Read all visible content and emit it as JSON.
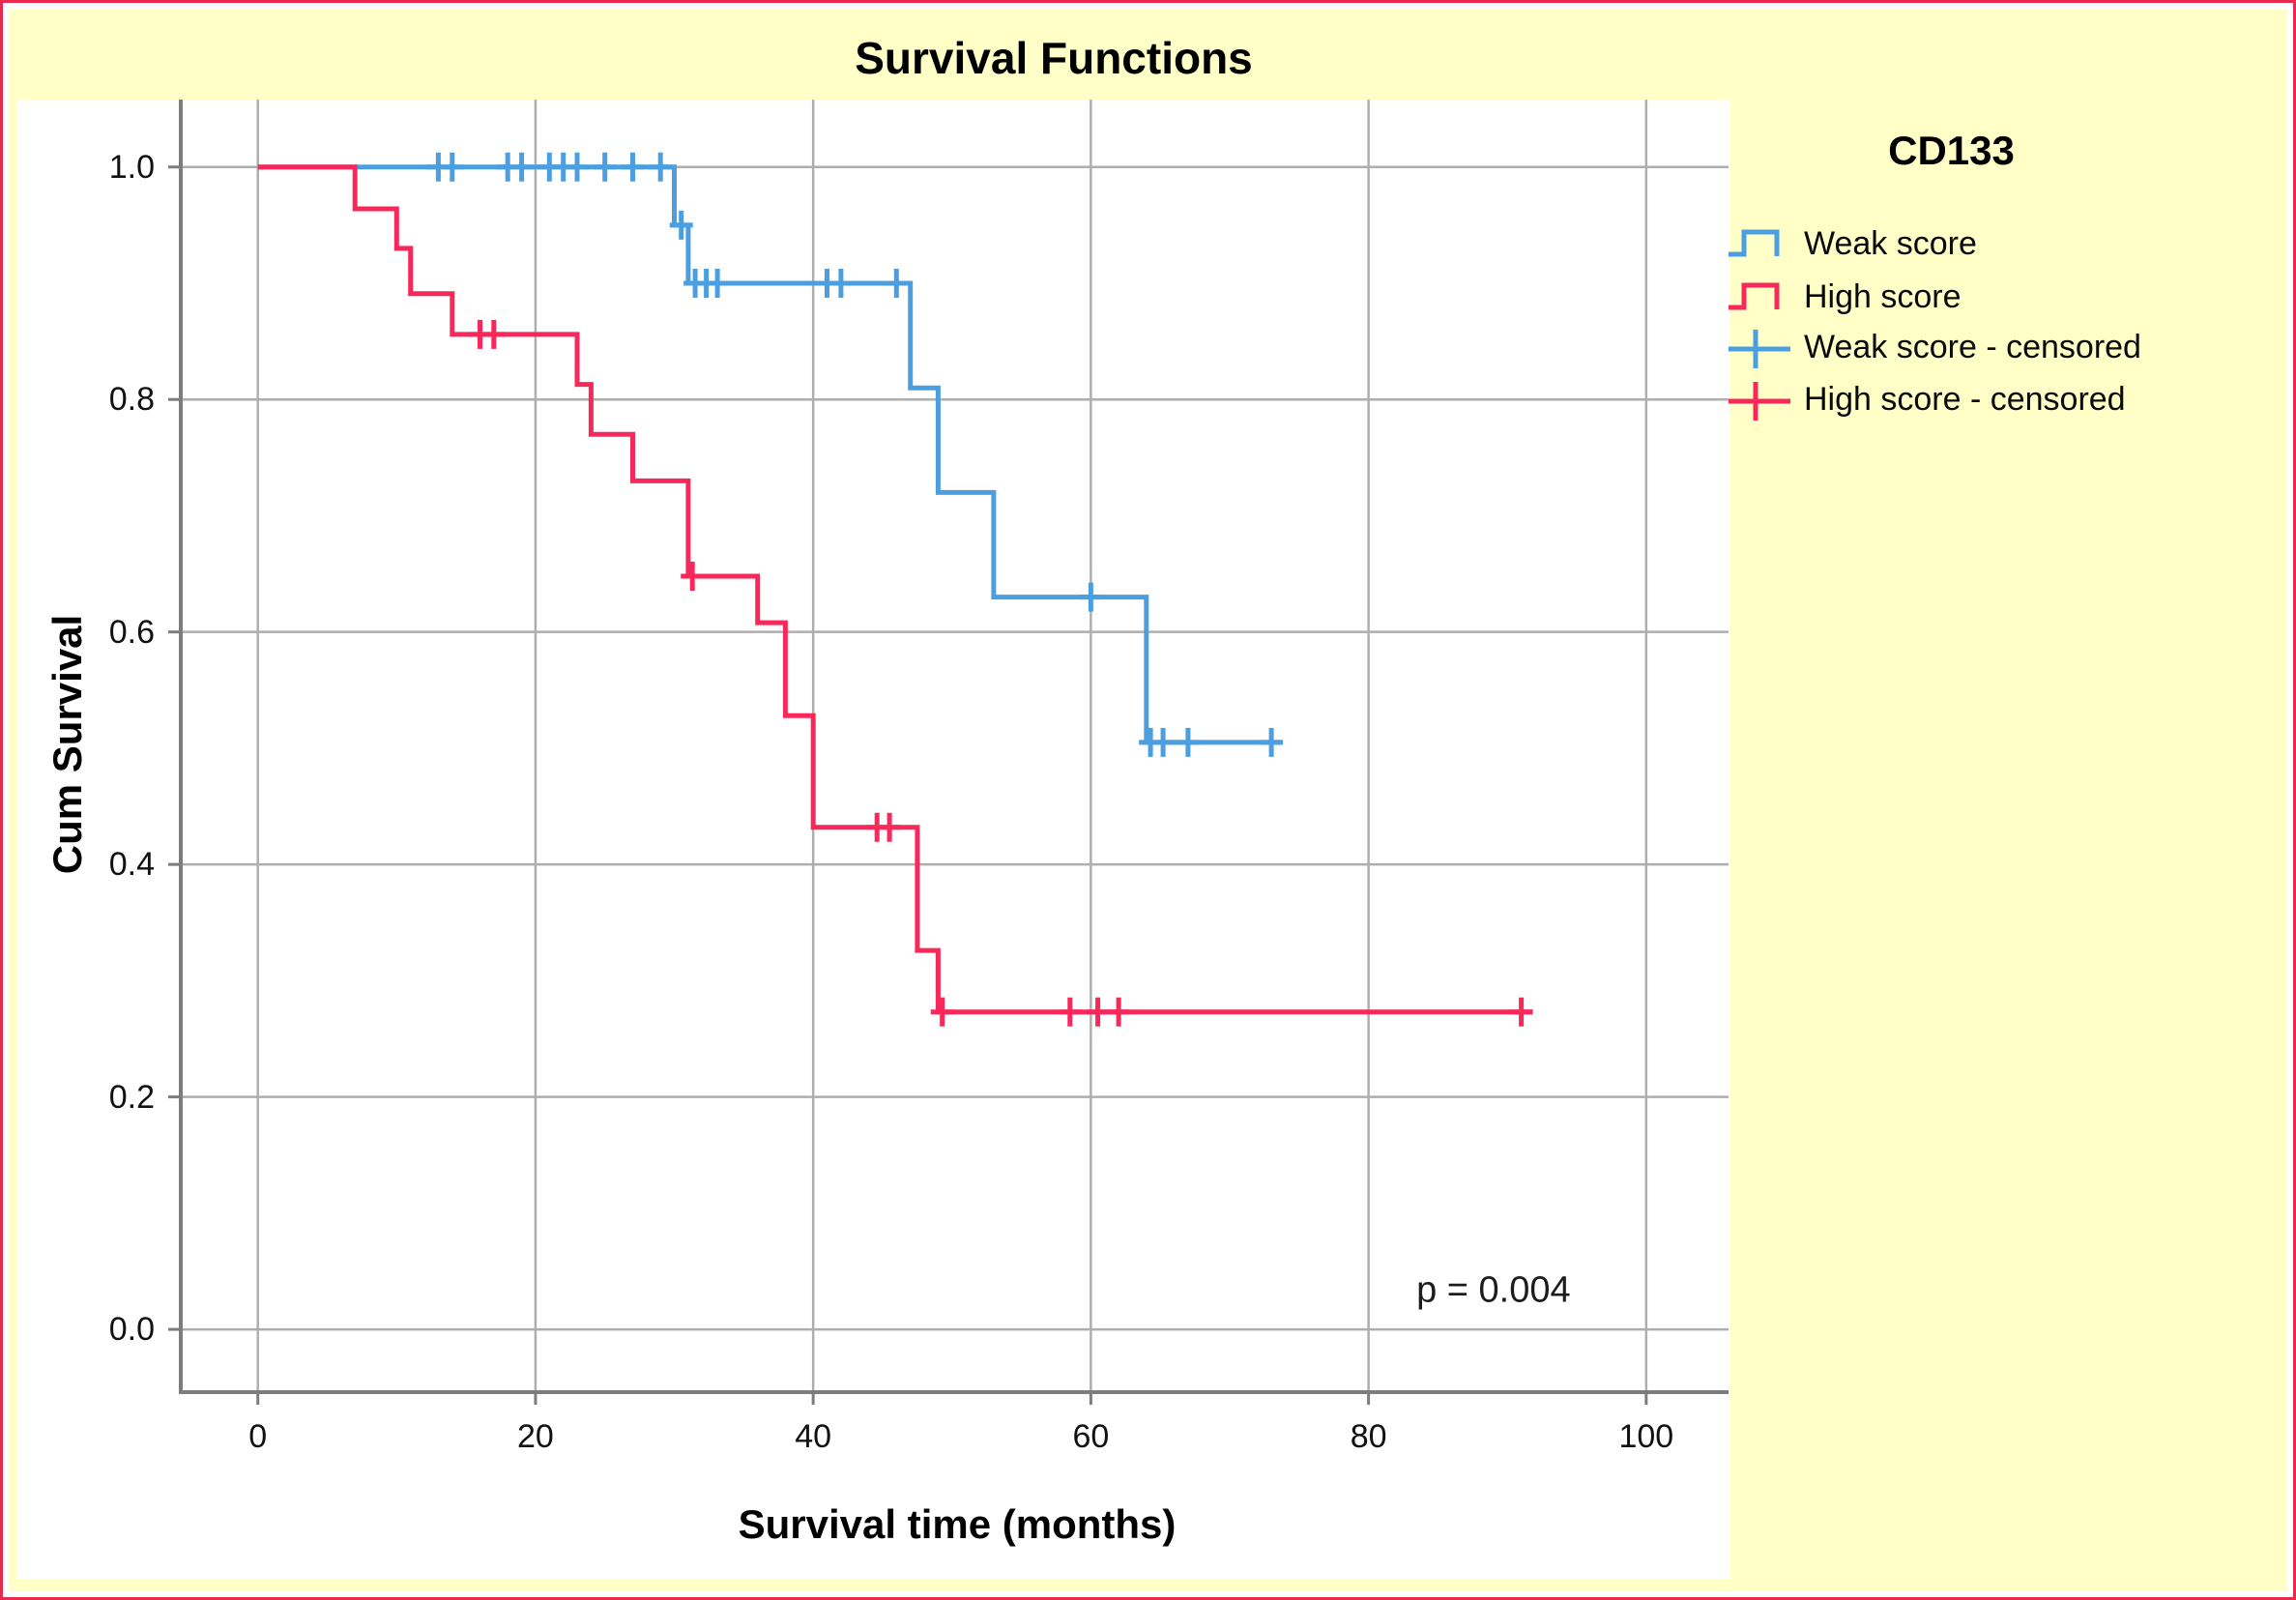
{
  "figure": {
    "title": "Survival Functions"
  },
  "colors": {
    "background_yellow": "#ffffc8",
    "frame_red": "#ea2a4d",
    "weak_score_blue": "#4b9fe0",
    "high_score_red": "#f8295a",
    "gridline_gray": "#aeaeae",
    "axis_gray": "#7d7d7d"
  },
  "legend": {
    "title": "CD133",
    "entries": [
      {
        "label": "Weak score",
        "type": "line",
        "color": "#4b9fe0"
      },
      {
        "label": "High score",
        "type": "line",
        "color": "#f8295a"
      },
      {
        "label": "Weak score - censored",
        "type": "censor",
        "color": "#4b9fe0"
      },
      {
        "label": "High score - censored",
        "type": "censor",
        "color": "#f8295a"
      }
    ]
  },
  "chart_data": {
    "type": "line",
    "subtype": "kaplan-meier-step",
    "title": "Survival Functions",
    "xlabel": "Survival time (months)",
    "ylabel": "Cum Survival",
    "xlim": [
      -5.55,
      105.93
    ],
    "ylim": [
      -0.054,
      1.058
    ],
    "x_ticks": [
      0,
      20,
      40,
      60,
      80,
      100
    ],
    "y_ticks": [
      1.0,
      0.8,
      0.6,
      0.4,
      0.2,
      0.0
    ],
    "grid": true,
    "legend_position": "right",
    "annotation": {
      "text": "p = 0.004",
      "x": 89,
      "y": 0.033
    },
    "series": [
      {
        "name": "Weak score",
        "color": "#4b9fe0",
        "steps": [
          [
            0,
            1.0
          ],
          [
            30,
            0.95
          ],
          [
            31,
            0.9
          ],
          [
            47,
            0.81
          ],
          [
            49,
            0.72
          ],
          [
            53,
            0.63
          ],
          [
            64,
            0.505
          ]
        ],
        "end_time": 73.7,
        "censored": [
          [
            13,
            1.0
          ],
          [
            14,
            1.0
          ],
          [
            18,
            1.0
          ],
          [
            19,
            1.0
          ],
          [
            21,
            1.0
          ],
          [
            22,
            1.0
          ],
          [
            23,
            1.0
          ],
          [
            25,
            1.0
          ],
          [
            27,
            1.0
          ],
          [
            29,
            1.0
          ],
          [
            30.5,
            0.95
          ],
          [
            31.5,
            0.9
          ],
          [
            32.3,
            0.9
          ],
          [
            33.1,
            0.9
          ],
          [
            41,
            0.9
          ],
          [
            42,
            0.9
          ],
          [
            46,
            0.9
          ],
          [
            60,
            0.63
          ],
          [
            64.3,
            0.505
          ],
          [
            65.2,
            0.505
          ],
          [
            67,
            0.505
          ],
          [
            73,
            0.505
          ]
        ]
      },
      {
        "name": "High score",
        "color": "#f8295a",
        "steps": [
          [
            0,
            1.0
          ],
          [
            7,
            0.964
          ],
          [
            10,
            0.93
          ],
          [
            11,
            0.891
          ],
          [
            14,
            0.856
          ],
          [
            23,
            0.813
          ],
          [
            24,
            0.77
          ],
          [
            27,
            0.73
          ],
          [
            31,
            0.648
          ],
          [
            36,
            0.608
          ],
          [
            38,
            0.528
          ],
          [
            40,
            0.432
          ],
          [
            47.5,
            0.326
          ],
          [
            49,
            0.273
          ]
        ],
        "end_time": 91.8,
        "censored": [
          [
            16,
            0.856
          ],
          [
            17,
            0.856
          ],
          [
            31.3,
            0.648
          ],
          [
            44.6,
            0.432
          ],
          [
            45.5,
            0.432
          ],
          [
            49.3,
            0.273
          ],
          [
            58.5,
            0.273
          ],
          [
            60.5,
            0.273
          ],
          [
            62,
            0.273
          ],
          [
            91,
            0.273
          ]
        ]
      }
    ]
  }
}
